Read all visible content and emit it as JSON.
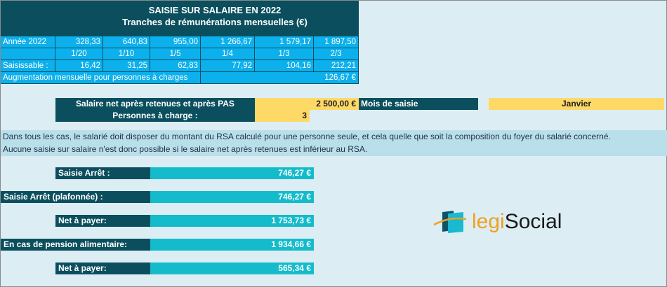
{
  "header": {
    "title": "SAISIE SUR SALAIRE EN 2022",
    "subtitle": "Tranches de rémunérations mensuelles (€)"
  },
  "table": {
    "year_label": "Année 2022",
    "brackets": [
      "328,33",
      "640,83",
      "955,00",
      "1 266,67",
      "1 579,17",
      "1 897,50"
    ],
    "fractions": [
      "1/20",
      "1/10",
      "1/5",
      "1/4",
      "1/3",
      "2/3"
    ],
    "seizable_label": "Saisissable :",
    "seizable": [
      "16,42",
      "31,25",
      "62,83",
      "77,92",
      "104,16",
      "212,21"
    ],
    "increase_label": "Augmentation mensuelle pour personnes à charges",
    "increase_value": "126,67 €"
  },
  "inputs": {
    "salary_label": "Salaire net après retenues et après PAS",
    "salary_value": "2 500,00 €",
    "month_label": "Mois de saisie",
    "month_value": "Janvier",
    "dependents_label": "Personnes à charge :",
    "dependents_value": "3"
  },
  "info": [
    "Dans tous les cas, le salarié doit disposer du montant du RSA calculé pour une personne seule, et cela quelle que soit la composition du foyer du salarié concerné.",
    "Aucune saisie sur salaire n'est donc possible si le salaire net après retenues est inférieur au RSA."
  ],
  "results": [
    {
      "label": "Saisie Arrêt   :",
      "value": "746,27 €"
    },
    {
      "label": "Saisie Arrêt (plafonnée)  :",
      "value": "746,27 €"
    },
    {
      "label": "Net à payer:",
      "value": "1 753,73 €"
    },
    {
      "label": "En cas de pension alimentaire:",
      "value": "1 934,66 €"
    },
    {
      "label": "Net à payer:",
      "value": "565,34 €"
    }
  ],
  "logo": {
    "part1": "legi",
    "part2": "Social"
  }
}
